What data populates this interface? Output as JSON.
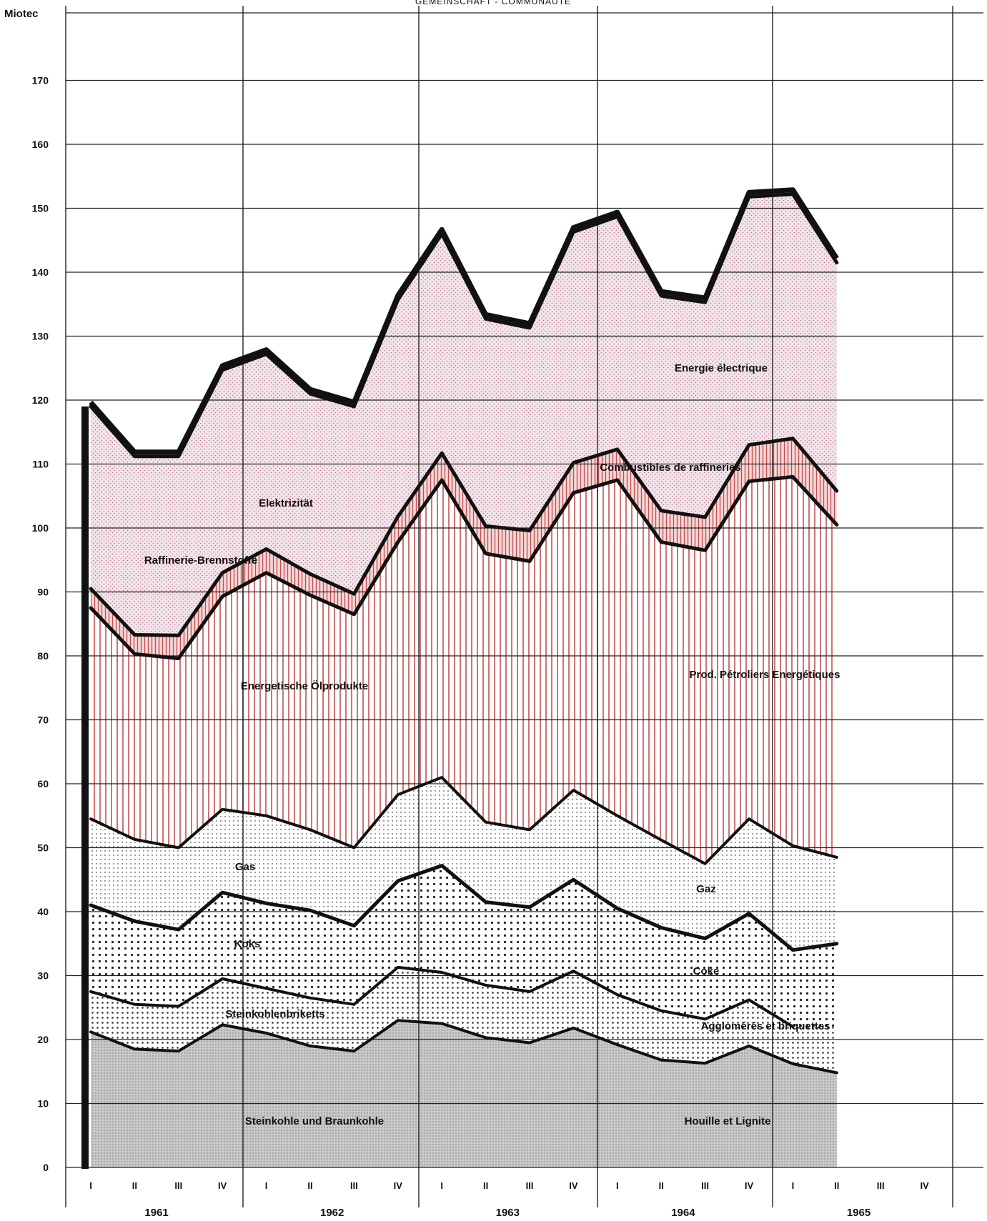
{
  "header": "GEMEINSCHAFT - COMMUNAUTÉ",
  "chart_data": {
    "type": "area",
    "stacked": true,
    "ylabel": "Miotec",
    "ylim": [
      0,
      175
    ],
    "yticks": [
      0,
      10,
      20,
      30,
      40,
      50,
      60,
      70,
      80,
      90,
      100,
      110,
      120,
      130,
      140,
      150,
      160,
      170
    ],
    "grid": true,
    "quarter_labels": [
      "I",
      "II",
      "III",
      "IV",
      "I",
      "II",
      "III",
      "IV",
      "I",
      "II",
      "III",
      "IV",
      "I",
      "II",
      "III",
      "IV",
      "I",
      "II",
      "III",
      "IV"
    ],
    "year_labels": [
      "1961",
      "1962",
      "1963",
      "1964",
      "1965"
    ],
    "x": [
      "1961 I",
      "1961 II",
      "1961 III",
      "1961 IV",
      "1962 I",
      "1962 II",
      "1962 III",
      "1962 IV",
      "1963 I",
      "1963 II",
      "1963 III",
      "1963 IV",
      "1964 I",
      "1964 II",
      "1964 III",
      "1964 IV",
      "1965 I",
      "1965 II"
    ],
    "series": [
      {
        "name": "Steinkohle und Braunkohle / Houille et Lignite",
        "fill": "#b8b8b8",
        "cumulative": [
          21.2,
          18.5,
          18.2,
          22.3,
          21.0,
          19.0,
          18.2,
          23.0,
          22.5,
          20.3,
          19.5,
          21.8,
          19.2,
          16.8,
          16.3,
          19.0,
          16.2,
          14.8
        ]
      },
      {
        "name": "Steinkohlenbriketts / Agglomérés et briquettes",
        "fill": "#eeeeee",
        "cumulative": [
          27.5,
          25.5,
          25.2,
          29.5,
          28.0,
          26.5,
          25.5,
          31.3,
          30.5,
          28.5,
          27.5,
          30.7,
          27.0,
          24.5,
          23.2,
          26.2,
          22.0,
          null
        ]
      },
      {
        "name": "Koks / Coke",
        "fill": "#e2e2e2",
        "cumulative": [
          41.0,
          38.5,
          37.2,
          43.0,
          41.3,
          40.2,
          37.8,
          44.8,
          47.2,
          41.5,
          40.7,
          45.0,
          40.5,
          37.5,
          35.8,
          39.7,
          34.0,
          35.0
        ]
      },
      {
        "name": "Gas / Gaz",
        "fill": "#f4f4f4",
        "cumulative": [
          54.5,
          51.3,
          50.0,
          56.0,
          55.0,
          52.8,
          50.0,
          58.3,
          61.0,
          54.0,
          52.8,
          59.0,
          55.0,
          51.2,
          47.5,
          54.5,
          50.3,
          48.5
        ]
      },
      {
        "name": "Energetische Ölprodukte / Prod. Pétroliers Energétiques",
        "fill": "#f7dcdc",
        "cumulative": [
          87.5,
          80.3,
          79.6,
          89.3,
          93.0,
          89.5,
          86.5,
          97.8,
          107.5,
          96.0,
          94.8,
          105.5,
          107.5,
          97.8,
          96.5,
          107.3,
          108.0,
          100.5
        ]
      },
      {
        "name": "Raffinerie-Brennstoffe / Combustibles de raffineries",
        "fill": "#f0cfcf",
        "cumulative": [
          90.5,
          83.3,
          83.2,
          93.0,
          96.7,
          92.8,
          89.7,
          101.8,
          111.7,
          100.3,
          99.6,
          110.2,
          112.3,
          102.7,
          101.7,
          113.0,
          114.0,
          105.8
        ]
      },
      {
        "name": "Elektrizität / Energie électrique",
        "fill": "#efe4e8",
        "cumulative": [
          119.0,
          111.2,
          111.2,
          124.7,
          127.2,
          121.0,
          119.0,
          135.7,
          146.0,
          132.7,
          131.3,
          146.3,
          148.7,
          136.3,
          135.3,
          151.8,
          152.2,
          141.5
        ]
      }
    ],
    "annotations": [
      "Elektrizität",
      "Energie électrique",
      "Raffinerie-Brennstoffe",
      "Combustibles de raffineries",
      "Energetische Ölprodukte",
      "Prod. Pétroliers Energétiques",
      "Gas",
      "Gaz",
      "Koks",
      "Coke",
      "Steinkohlenbriketts",
      "Agglomérés et briquettes",
      "Steinkohle und Braunkohle",
      "Houille et Lignite"
    ]
  }
}
